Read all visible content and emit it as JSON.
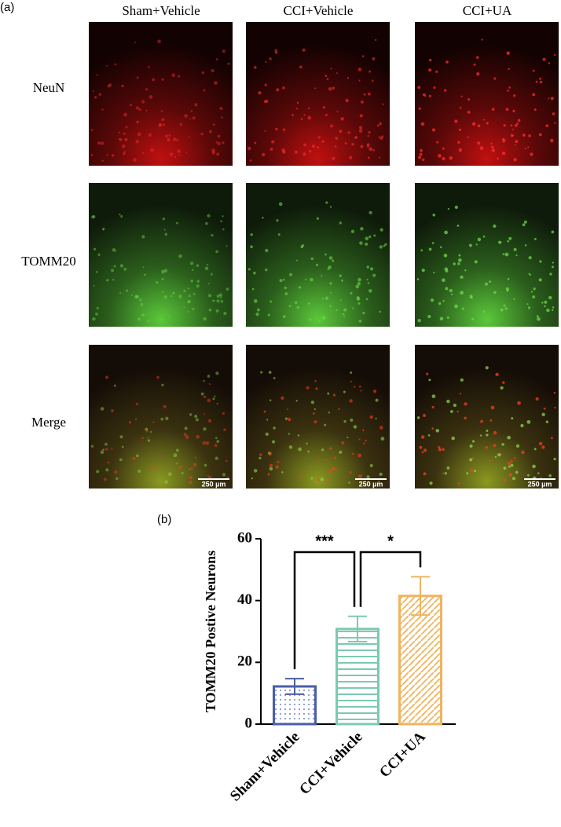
{
  "panel_labels": [
    "(a)",
    "(b)"
  ],
  "columns": [
    "Sham+Vehicle",
    "CCI+Vehicle",
    "CCI+UA"
  ],
  "rows": [
    "NeuN",
    "TOMM20",
    "Merge"
  ],
  "scale_bar": "250 µm",
  "chart_data": {
    "type": "bar",
    "y_label": "TOMM20 Postive Neurons",
    "categories": [
      "Sham+Vehicle",
      "CCI+Vehicle",
      "CCI+UA"
    ],
    "values": [
      12.2,
      30.8,
      41.5
    ],
    "errors": [
      2.5,
      4.1,
      6.2
    ],
    "colors": [
      "#4a5ea8",
      "#7ccab0",
      "#f0b35e"
    ],
    "ylim": [
      0,
      60
    ],
    "yticks": [
      0,
      20,
      40,
      60
    ],
    "annotations": [
      "***",
      "*"
    ]
  }
}
